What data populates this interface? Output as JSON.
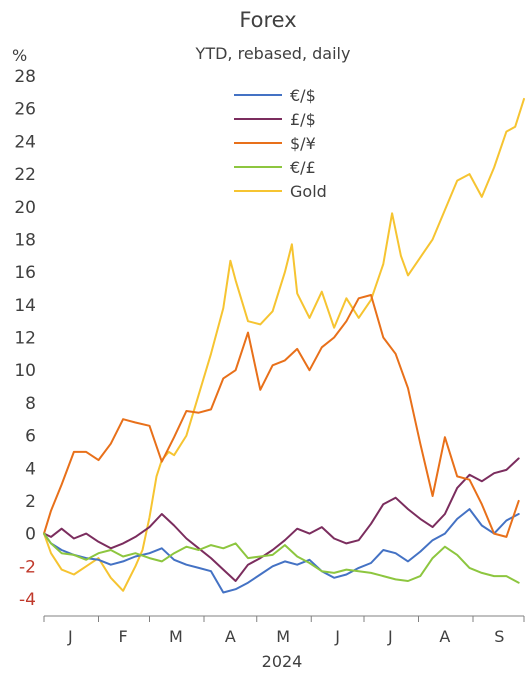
{
  "chart_data": {
    "type": "line",
    "title": "Forex",
    "subtitle": "YTD, rebased, daily",
    "y_unit": "%",
    "ylim": [
      -4,
      28
    ],
    "y_ticks": [
      28,
      26,
      24,
      22,
      20,
      18,
      16,
      14,
      12,
      10,
      8,
      6,
      4,
      2,
      0,
      -2,
      -4
    ],
    "xlim": [
      "2024-01-01",
      "2024-09-30"
    ],
    "x_month_labels": [
      {
        "label": "J",
        "date": "2024-01-16"
      },
      {
        "label": "F",
        "date": "2024-02-15"
      },
      {
        "label": "M",
        "date": "2024-03-16"
      },
      {
        "label": "A",
        "date": "2024-04-16"
      },
      {
        "label": "M",
        "date": "2024-05-16"
      },
      {
        "label": "J",
        "date": "2024-06-16"
      },
      {
        "label": "J",
        "date": "2024-07-16"
      },
      {
        "label": "A",
        "date": "2024-08-16"
      },
      {
        "label": "S",
        "date": "2024-09-16"
      }
    ],
    "x_month_ticks": [
      "2024-01-01",
      "2024-02-01",
      "2024-03-01",
      "2024-04-01",
      "2024-05-01",
      "2024-06-01",
      "2024-07-01",
      "2024-08-01",
      "2024-09-01",
      "2024-10-01"
    ],
    "x_axis_year": "2024",
    "legend_position": "top-center",
    "series": [
      {
        "name": "€/$",
        "color": "#4472C4",
        "points": [
          [
            "2024-01-01",
            0
          ],
          [
            "2024-01-05",
            -0.6
          ],
          [
            "2024-01-11",
            -1.0
          ],
          [
            "2024-01-18",
            -1.3
          ],
          [
            "2024-01-25",
            -1.5
          ],
          [
            "2024-02-01",
            -1.6
          ],
          [
            "2024-02-08",
            -1.9
          ],
          [
            "2024-02-15",
            -1.7
          ],
          [
            "2024-02-22",
            -1.4
          ],
          [
            "2024-03-01",
            -1.2
          ],
          [
            "2024-03-08",
            -0.9
          ],
          [
            "2024-03-15",
            -1.6
          ],
          [
            "2024-03-22",
            -1.9
          ],
          [
            "2024-03-29",
            -2.1
          ],
          [
            "2024-04-05",
            -2.3
          ],
          [
            "2024-04-12",
            -3.6
          ],
          [
            "2024-04-19",
            -3.4
          ],
          [
            "2024-04-26",
            -3.0
          ],
          [
            "2024-05-03",
            -2.5
          ],
          [
            "2024-05-10",
            -2.0
          ],
          [
            "2024-05-17",
            -1.7
          ],
          [
            "2024-05-24",
            -1.9
          ],
          [
            "2024-05-31",
            -1.6
          ],
          [
            "2024-06-07",
            -2.3
          ],
          [
            "2024-06-14",
            -2.7
          ],
          [
            "2024-06-21",
            -2.5
          ],
          [
            "2024-06-28",
            -2.1
          ],
          [
            "2024-07-05",
            -1.8
          ],
          [
            "2024-07-12",
            -1.0
          ],
          [
            "2024-07-19",
            -1.2
          ],
          [
            "2024-07-26",
            -1.7
          ],
          [
            "2024-08-02",
            -1.1
          ],
          [
            "2024-08-09",
            -0.4
          ],
          [
            "2024-08-16",
            0.0
          ],
          [
            "2024-08-23",
            0.9
          ],
          [
            "2024-08-30",
            1.5
          ],
          [
            "2024-09-06",
            0.5
          ],
          [
            "2024-09-13",
            0.0
          ],
          [
            "2024-09-20",
            0.8
          ],
          [
            "2024-09-27",
            1.2
          ]
        ]
      },
      {
        "name": "£/$",
        "color": "#7B2D5E",
        "points": [
          [
            "2024-01-01",
            0
          ],
          [
            "2024-01-05",
            -0.2
          ],
          [
            "2024-01-11",
            0.3
          ],
          [
            "2024-01-18",
            -0.3
          ],
          [
            "2024-01-25",
            0.0
          ],
          [
            "2024-02-01",
            -0.5
          ],
          [
            "2024-02-08",
            -0.9
          ],
          [
            "2024-02-15",
            -0.6
          ],
          [
            "2024-02-22",
            -0.2
          ],
          [
            "2024-03-01",
            0.4
          ],
          [
            "2024-03-08",
            1.2
          ],
          [
            "2024-03-15",
            0.5
          ],
          [
            "2024-03-22",
            -0.3
          ],
          [
            "2024-03-29",
            -0.9
          ],
          [
            "2024-04-05",
            -1.5
          ],
          [
            "2024-04-12",
            -2.2
          ],
          [
            "2024-04-19",
            -2.9
          ],
          [
            "2024-04-26",
            -1.9
          ],
          [
            "2024-05-03",
            -1.5
          ],
          [
            "2024-05-10",
            -1.0
          ],
          [
            "2024-05-17",
            -0.4
          ],
          [
            "2024-05-24",
            0.3
          ],
          [
            "2024-05-31",
            0.0
          ],
          [
            "2024-06-07",
            0.4
          ],
          [
            "2024-06-14",
            -0.3
          ],
          [
            "2024-06-21",
            -0.6
          ],
          [
            "2024-06-28",
            -0.4
          ],
          [
            "2024-07-05",
            0.6
          ],
          [
            "2024-07-12",
            1.8
          ],
          [
            "2024-07-19",
            2.2
          ],
          [
            "2024-07-26",
            1.5
          ],
          [
            "2024-08-02",
            0.9
          ],
          [
            "2024-08-09",
            0.4
          ],
          [
            "2024-08-16",
            1.2
          ],
          [
            "2024-08-23",
            2.8
          ],
          [
            "2024-08-30",
            3.6
          ],
          [
            "2024-09-06",
            3.2
          ],
          [
            "2024-09-13",
            3.7
          ],
          [
            "2024-09-20",
            3.9
          ],
          [
            "2024-09-27",
            4.6
          ]
        ]
      },
      {
        "name": "$/¥",
        "color": "#E8701A",
        "points": [
          [
            "2024-01-01",
            0
          ],
          [
            "2024-01-05",
            1.4
          ],
          [
            "2024-01-11",
            3.0
          ],
          [
            "2024-01-18",
            5.0
          ],
          [
            "2024-01-25",
            5.0
          ],
          [
            "2024-02-01",
            4.5
          ],
          [
            "2024-02-08",
            5.5
          ],
          [
            "2024-02-15",
            7.0
          ],
          [
            "2024-02-22",
            6.8
          ],
          [
            "2024-03-01",
            6.6
          ],
          [
            "2024-03-08",
            4.4
          ],
          [
            "2024-03-15",
            5.9
          ],
          [
            "2024-03-22",
            7.5
          ],
          [
            "2024-03-29",
            7.4
          ],
          [
            "2024-04-05",
            7.6
          ],
          [
            "2024-04-12",
            9.5
          ],
          [
            "2024-04-19",
            10.0
          ],
          [
            "2024-04-26",
            12.3
          ],
          [
            "2024-05-03",
            8.8
          ],
          [
            "2024-05-10",
            10.3
          ],
          [
            "2024-05-17",
            10.6
          ],
          [
            "2024-05-24",
            11.3
          ],
          [
            "2024-05-31",
            10.0
          ],
          [
            "2024-06-07",
            11.4
          ],
          [
            "2024-06-14",
            12.0
          ],
          [
            "2024-06-21",
            13.0
          ],
          [
            "2024-06-28",
            14.4
          ],
          [
            "2024-07-05",
            14.6
          ],
          [
            "2024-07-12",
            12.0
          ],
          [
            "2024-07-19",
            11.0
          ],
          [
            "2024-07-26",
            8.9
          ],
          [
            "2024-08-02",
            5.5
          ],
          [
            "2024-08-09",
            2.3
          ],
          [
            "2024-08-16",
            5.9
          ],
          [
            "2024-08-23",
            3.5
          ],
          [
            "2024-08-30",
            3.3
          ],
          [
            "2024-09-06",
            1.8
          ],
          [
            "2024-09-13",
            0.0
          ],
          [
            "2024-09-20",
            -0.2
          ],
          [
            "2024-09-27",
            2.0
          ]
        ]
      },
      {
        "name": "€/£",
        "color": "#8DC63F",
        "points": [
          [
            "2024-01-01",
            0
          ],
          [
            "2024-01-05",
            -0.6
          ],
          [
            "2024-01-11",
            -1.2
          ],
          [
            "2024-01-18",
            -1.3
          ],
          [
            "2024-01-25",
            -1.6
          ],
          [
            "2024-02-01",
            -1.2
          ],
          [
            "2024-02-08",
            -1.0
          ],
          [
            "2024-02-15",
            -1.4
          ],
          [
            "2024-02-22",
            -1.2
          ],
          [
            "2024-03-01",
            -1.5
          ],
          [
            "2024-03-08",
            -1.7
          ],
          [
            "2024-03-15",
            -1.2
          ],
          [
            "2024-03-22",
            -0.8
          ],
          [
            "2024-03-29",
            -1.0
          ],
          [
            "2024-04-05",
            -0.7
          ],
          [
            "2024-04-12",
            -0.9
          ],
          [
            "2024-04-19",
            -0.6
          ],
          [
            "2024-04-26",
            -1.5
          ],
          [
            "2024-05-03",
            -1.4
          ],
          [
            "2024-05-10",
            -1.3
          ],
          [
            "2024-05-17",
            -0.7
          ],
          [
            "2024-05-24",
            -1.4
          ],
          [
            "2024-05-31",
            -1.8
          ],
          [
            "2024-06-07",
            -2.3
          ],
          [
            "2024-06-14",
            -2.4
          ],
          [
            "2024-06-21",
            -2.2
          ],
          [
            "2024-06-28",
            -2.3
          ],
          [
            "2024-07-05",
            -2.4
          ],
          [
            "2024-07-12",
            -2.6
          ],
          [
            "2024-07-19",
            -2.8
          ],
          [
            "2024-07-26",
            -2.9
          ],
          [
            "2024-08-02",
            -2.6
          ],
          [
            "2024-08-09",
            -1.5
          ],
          [
            "2024-08-16",
            -0.8
          ],
          [
            "2024-08-23",
            -1.3
          ],
          [
            "2024-08-30",
            -2.1
          ],
          [
            "2024-09-06",
            -2.4
          ],
          [
            "2024-09-13",
            -2.6
          ],
          [
            "2024-09-20",
            -2.6
          ],
          [
            "2024-09-27",
            -3.0
          ]
        ]
      },
      {
        "name": "Gold",
        "color": "#F6C431",
        "points": [
          [
            "2024-01-01",
            0
          ],
          [
            "2024-01-05",
            -1.2
          ],
          [
            "2024-01-11",
            -2.2
          ],
          [
            "2024-01-18",
            -2.5
          ],
          [
            "2024-01-25",
            -2.0
          ],
          [
            "2024-02-01",
            -1.5
          ],
          [
            "2024-02-08",
            -2.7
          ],
          [
            "2024-02-15",
            -3.5
          ],
          [
            "2024-02-22",
            -2.0
          ],
          [
            "2024-02-26",
            -1.0
          ],
          [
            "2024-03-01",
            1.0
          ],
          [
            "2024-03-05",
            3.5
          ],
          [
            "2024-03-08",
            4.5
          ],
          [
            "2024-03-12",
            5.0
          ],
          [
            "2024-03-15",
            4.8
          ],
          [
            "2024-03-22",
            6.0
          ],
          [
            "2024-03-29",
            8.5
          ],
          [
            "2024-04-05",
            11.0
          ],
          [
            "2024-04-12",
            13.8
          ],
          [
            "2024-04-16",
            16.7
          ],
          [
            "2024-04-19",
            15.5
          ],
          [
            "2024-04-26",
            13.0
          ],
          [
            "2024-05-03",
            12.8
          ],
          [
            "2024-05-10",
            13.6
          ],
          [
            "2024-05-17",
            16.0
          ],
          [
            "2024-05-21",
            17.7
          ],
          [
            "2024-05-24",
            14.7
          ],
          [
            "2024-05-31",
            13.2
          ],
          [
            "2024-06-07",
            14.8
          ],
          [
            "2024-06-14",
            12.6
          ],
          [
            "2024-06-21",
            14.4
          ],
          [
            "2024-06-28",
            13.2
          ],
          [
            "2024-07-05",
            14.3
          ],
          [
            "2024-07-12",
            16.5
          ],
          [
            "2024-07-17",
            19.6
          ],
          [
            "2024-07-22",
            17.0
          ],
          [
            "2024-07-26",
            15.8
          ],
          [
            "2024-08-02",
            16.9
          ],
          [
            "2024-08-09",
            18.0
          ],
          [
            "2024-08-16",
            19.8
          ],
          [
            "2024-08-23",
            21.6
          ],
          [
            "2024-08-30",
            22.0
          ],
          [
            "2024-09-06",
            20.6
          ],
          [
            "2024-09-13",
            22.4
          ],
          [
            "2024-09-20",
            24.6
          ],
          [
            "2024-09-25",
            24.9
          ],
          [
            "2024-09-30",
            26.6
          ]
        ]
      }
    ]
  }
}
